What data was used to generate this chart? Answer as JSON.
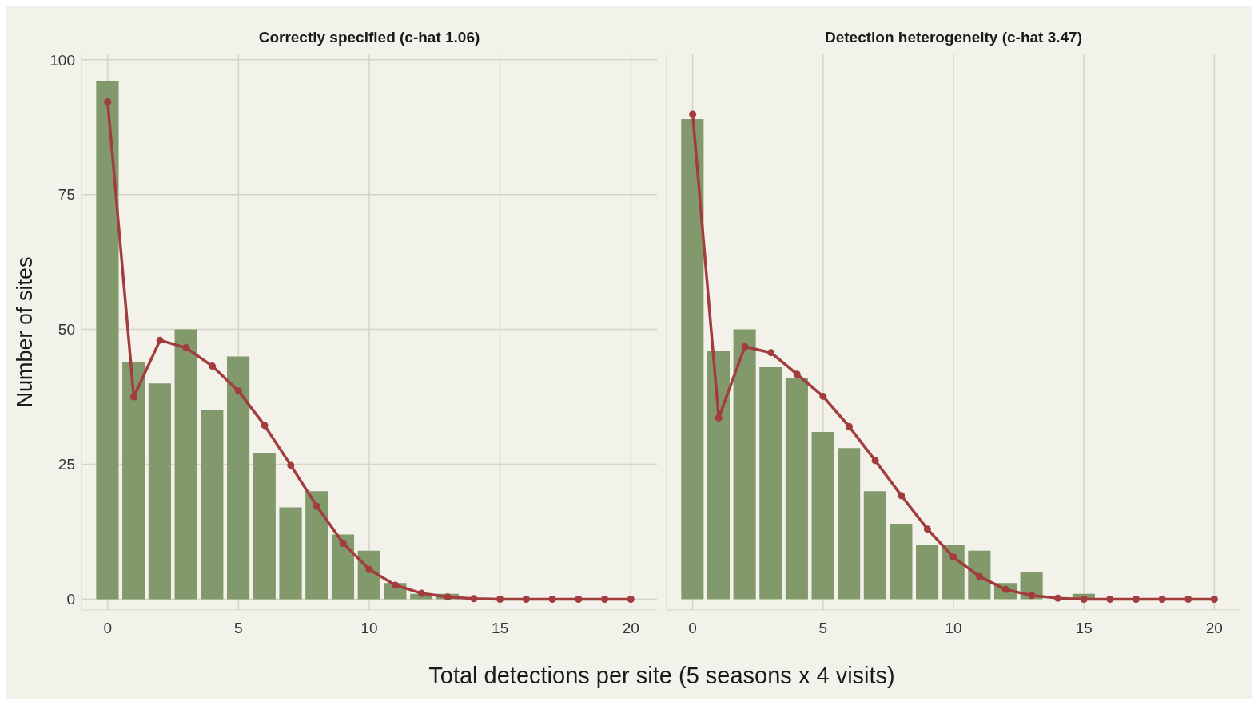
{
  "chart_data": [
    {
      "type": "bar",
      "title": "Correctly specified (c-hat 1.06)",
      "xlabel": "Total detections per site (5 seasons x 4 visits)",
      "ylabel": "Number of sites",
      "x": [
        0,
        1,
        2,
        3,
        4,
        5,
        6,
        7,
        8,
        9,
        10,
        11,
        12,
        13,
        14,
        15,
        16,
        17,
        18,
        19,
        20
      ],
      "xlim": [
        -1,
        21
      ],
      "xticks": [
        0,
        5,
        10,
        15,
        20
      ],
      "ylim": [
        -2,
        101
      ],
      "yticks": [
        0,
        25,
        50,
        75,
        100
      ],
      "grid": true,
      "series": [
        {
          "color": "#81996b",
          "values": [
            96,
            44,
            40,
            50,
            35,
            45,
            27,
            17,
            20,
            12,
            9,
            3,
            1,
            1,
            0,
            0,
            0,
            0,
            0,
            0,
            0
          ]
        },
        {
          "type": "line",
          "color": "#a33c3c",
          "marker": "circle",
          "values": [
            92.2,
            37.5,
            48,
            46.6,
            43.2,
            38.6,
            32.2,
            24.8,
            17.2,
            10.4,
            5.5,
            2.6,
            1.1,
            0.4,
            0.1,
            0,
            0,
            0,
            0,
            0,
            0
          ]
        }
      ]
    },
    {
      "type": "bar",
      "title": "Detection heterogeneity (c-hat 3.47)",
      "x": [
        0,
        1,
        2,
        3,
        4,
        5,
        6,
        7,
        8,
        9,
        10,
        11,
        12,
        13,
        14,
        15,
        16,
        17,
        18,
        19,
        20
      ],
      "xlim": [
        -1,
        21
      ],
      "xticks": [
        0,
        5,
        10,
        15,
        20
      ],
      "ylim": [
        -2,
        101
      ],
      "yticks": [
        0,
        25,
        50,
        75,
        100
      ],
      "grid": true,
      "tick_labels": "x",
      "series": [
        {
          "color": "#81996b",
          "values": [
            89,
            46,
            50,
            43,
            41,
            31,
            28,
            20,
            14,
            10,
            10,
            9,
            3,
            5,
            0,
            1,
            0,
            0,
            0,
            0,
            0
          ]
        },
        {
          "type": "line",
          "color": "#a33c3c",
          "marker": "circle",
          "values": [
            89.9,
            33.6,
            46.8,
            45.7,
            41.7,
            37.6,
            32,
            25.7,
            19.2,
            13,
            7.8,
            4.2,
            1.8,
            0.7,
            0.2,
            0,
            0,
            0,
            0,
            0,
            0
          ]
        }
      ]
    }
  ]
}
